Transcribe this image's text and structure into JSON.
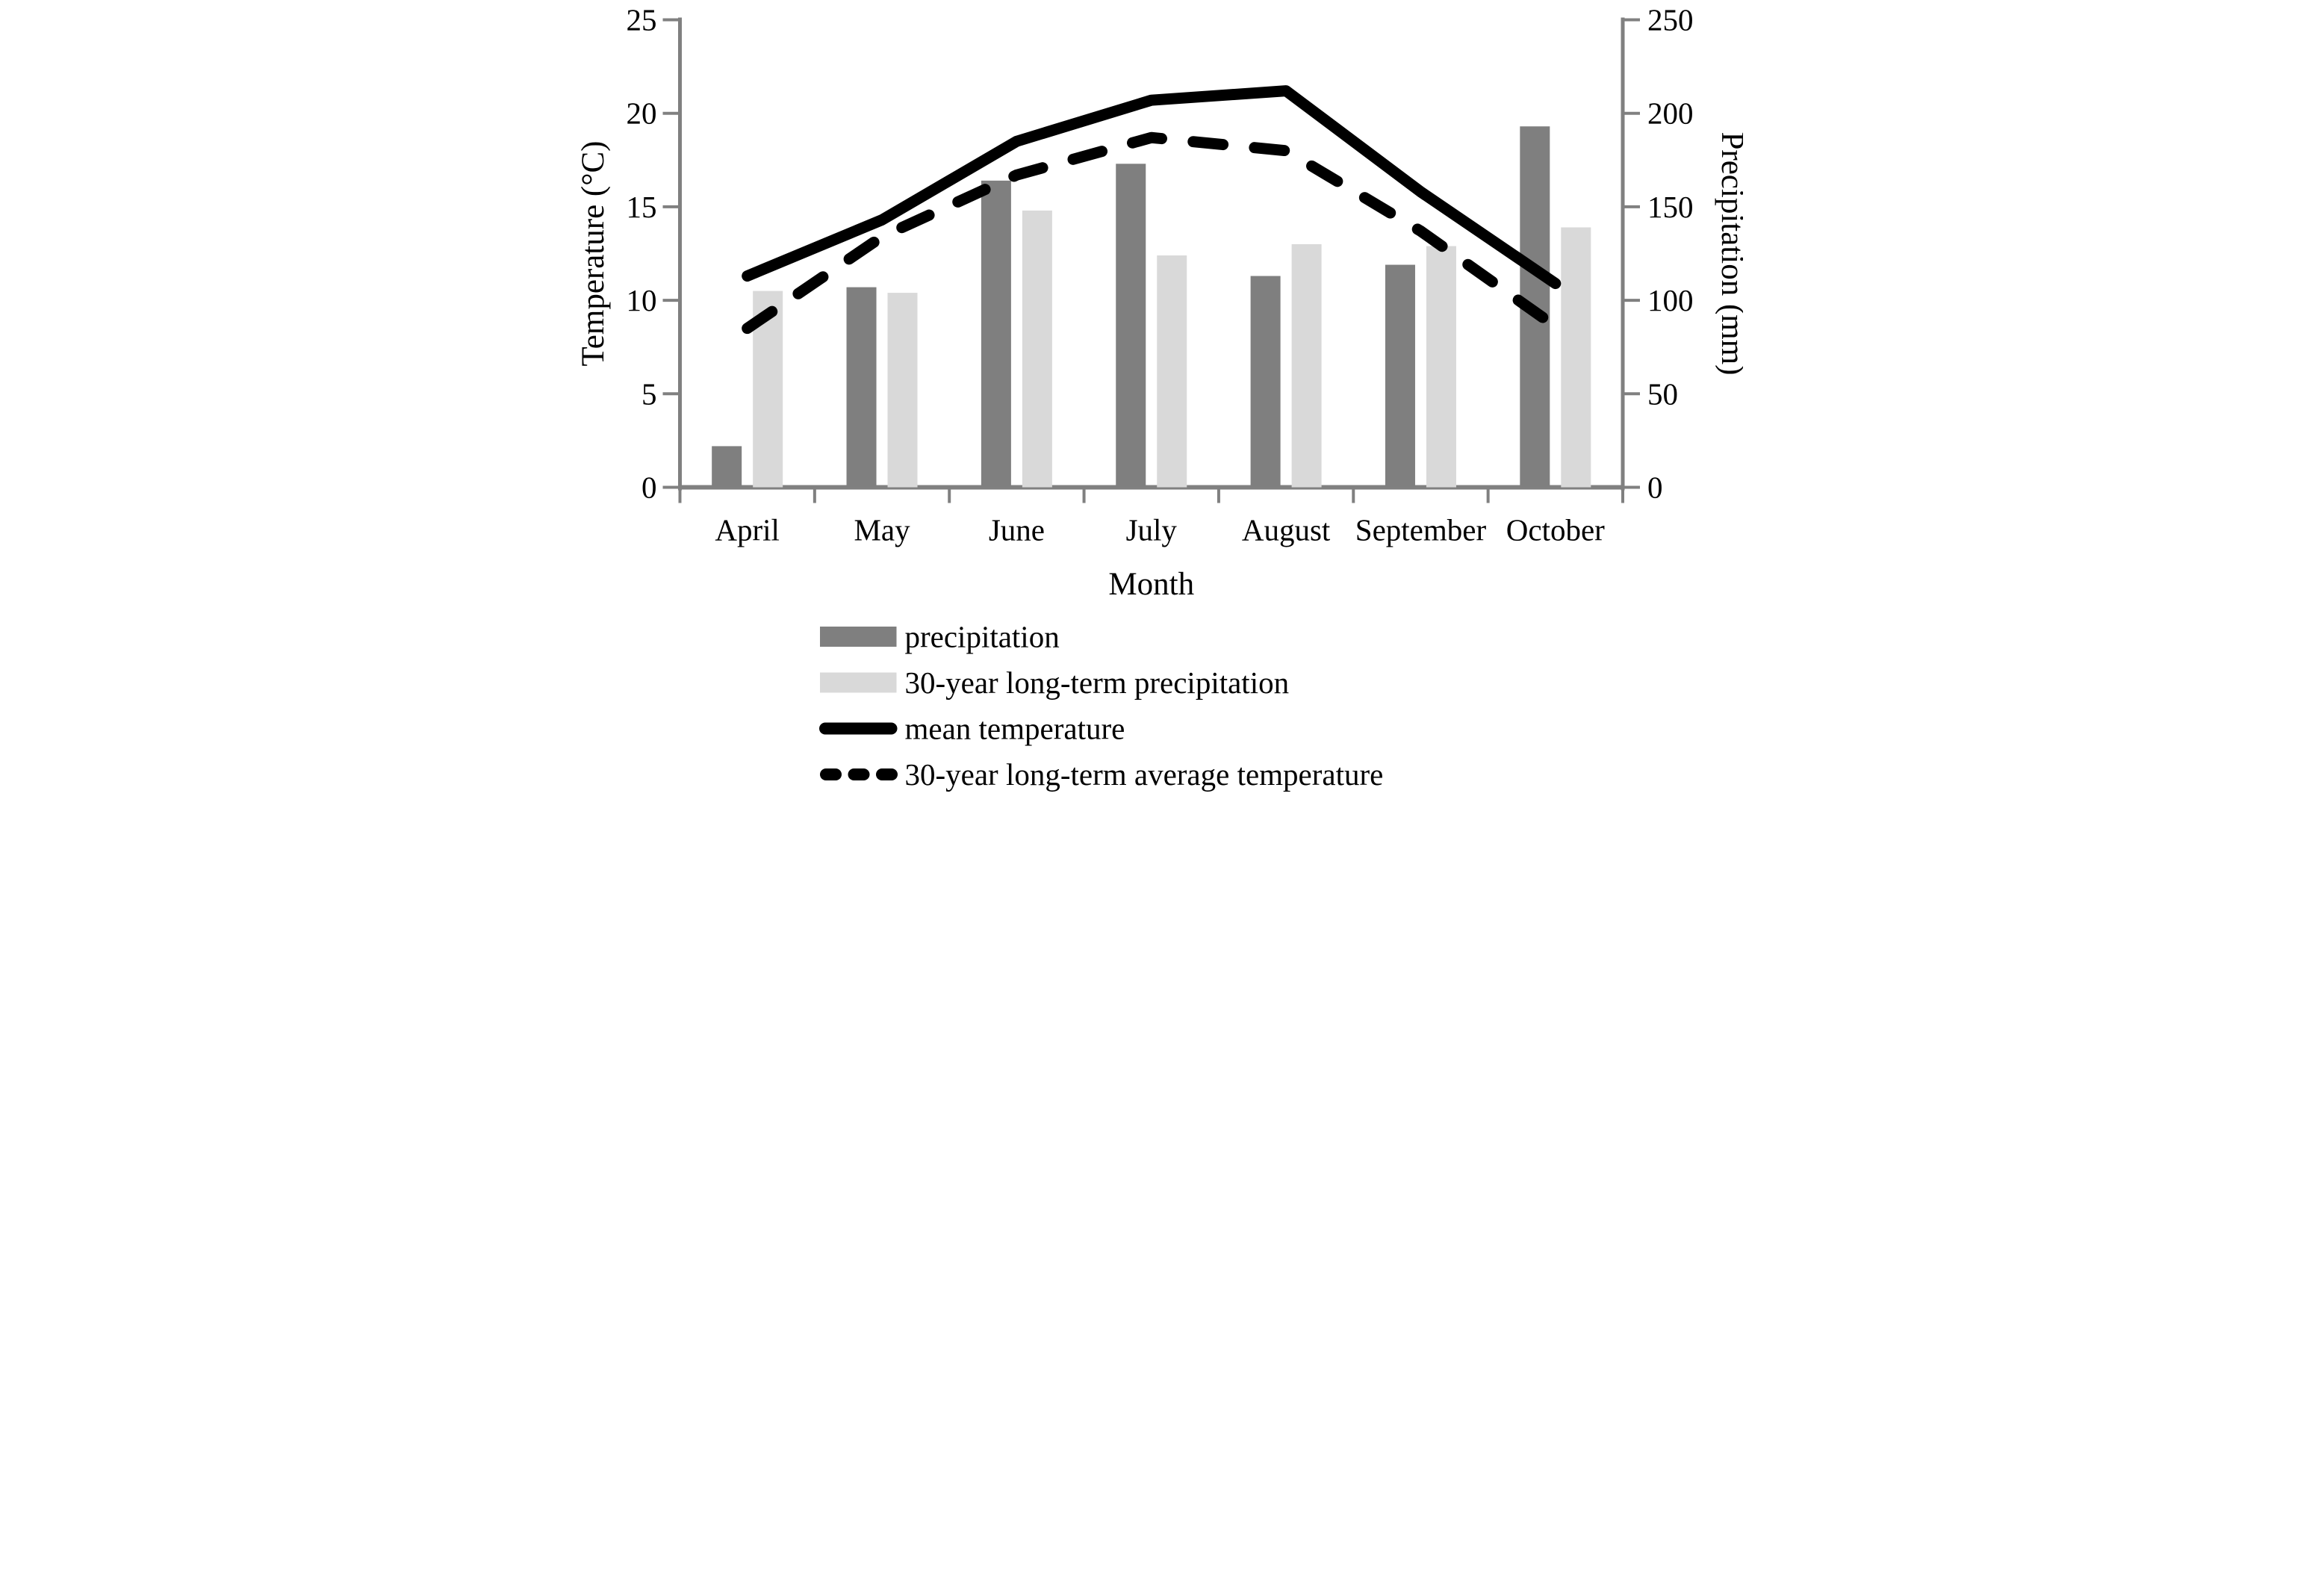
{
  "chart_data": {
    "type": "combo-bar-line",
    "categories": [
      "April",
      "May",
      "June",
      "July",
      "August",
      "September",
      "October"
    ],
    "series": [
      {
        "name": "precipitation",
        "kind": "bar",
        "axis": "right",
        "color": "#7f7f7f",
        "values": [
          22,
          107,
          164,
          173,
          113,
          119,
          193
        ]
      },
      {
        "name": "30-year long-term precipitation",
        "kind": "bar",
        "axis": "right",
        "color": "#d9d9d9",
        "values": [
          105,
          104,
          148,
          124,
          130,
          129,
          139
        ]
      },
      {
        "name": "mean temperature",
        "kind": "line",
        "line_style": "solid",
        "axis": "left",
        "color": "#000000",
        "values": [
          11.3,
          14.3,
          18.5,
          20.7,
          21.2,
          15.8,
          10.9
        ]
      },
      {
        "name": "30-year long-term average temperature",
        "kind": "line",
        "line_style": "dashed",
        "axis": "left",
        "color": "#000000",
        "values": [
          8.5,
          13.4,
          16.7,
          18.7,
          18.0,
          13.7,
          8.6
        ]
      }
    ],
    "left_axis": {
      "label": "Temperature (°C)",
      "min": 0,
      "max": 25,
      "step": 5,
      "tick_labels": [
        "0",
        "5",
        "10",
        "15",
        "20",
        "25"
      ]
    },
    "right_axis": {
      "label": "Precipitation (mm)",
      "min": 0,
      "max": 250,
      "step": 50,
      "tick_labels": [
        "0",
        "50",
        "100",
        "150",
        "200",
        "250"
      ]
    },
    "x_axis": {
      "label": "Month"
    },
    "legend": {
      "position": "bottom-left",
      "entries": [
        {
          "label": "precipitation",
          "swatch": "bar",
          "color": "#7f7f7f"
        },
        {
          "label": "30-year long-term precipitation",
          "swatch": "bar",
          "color": "#d9d9d9"
        },
        {
          "label": "mean temperature",
          "swatch": "solid-line",
          "color": "#000000"
        },
        {
          "label": "30-year long-term average temperature",
          "swatch": "dashed-line",
          "color": "#000000"
        }
      ]
    },
    "grid": "off",
    "background": "#ffffff",
    "axis_color": "#808080"
  }
}
